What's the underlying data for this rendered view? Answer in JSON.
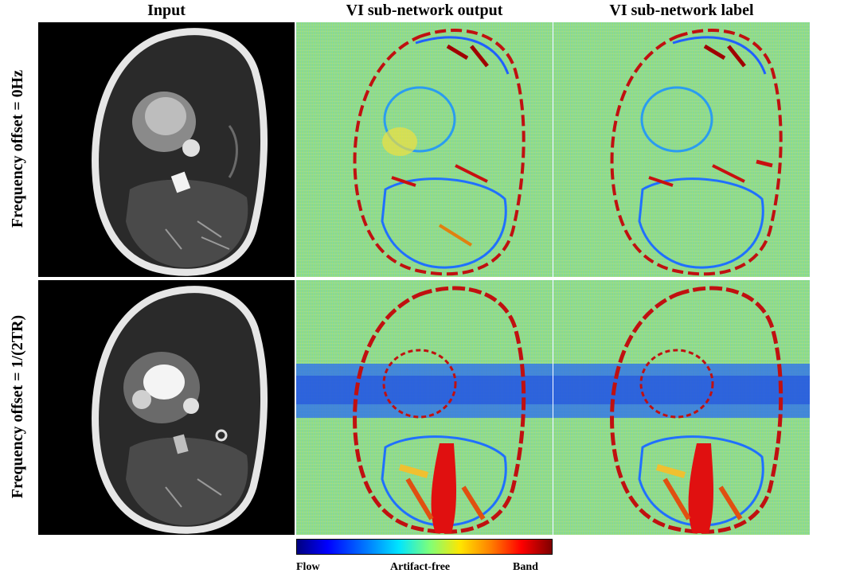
{
  "columns": {
    "input": "Input",
    "output": "VI sub-network output",
    "label": "VI sub-network label"
  },
  "rows": {
    "row1": "Frequency offset = 0Hz",
    "row2": "Frequency offset = 1/(2TR)"
  },
  "colorbar": {
    "left": "Flow",
    "center": "Artifact-free",
    "right": "Band",
    "colors": [
      "#00007f",
      "#0000ff",
      "#00e5ff",
      "#7dff7a",
      "#ffe600",
      "#ff0000",
      "#7f0000"
    ]
  }
}
